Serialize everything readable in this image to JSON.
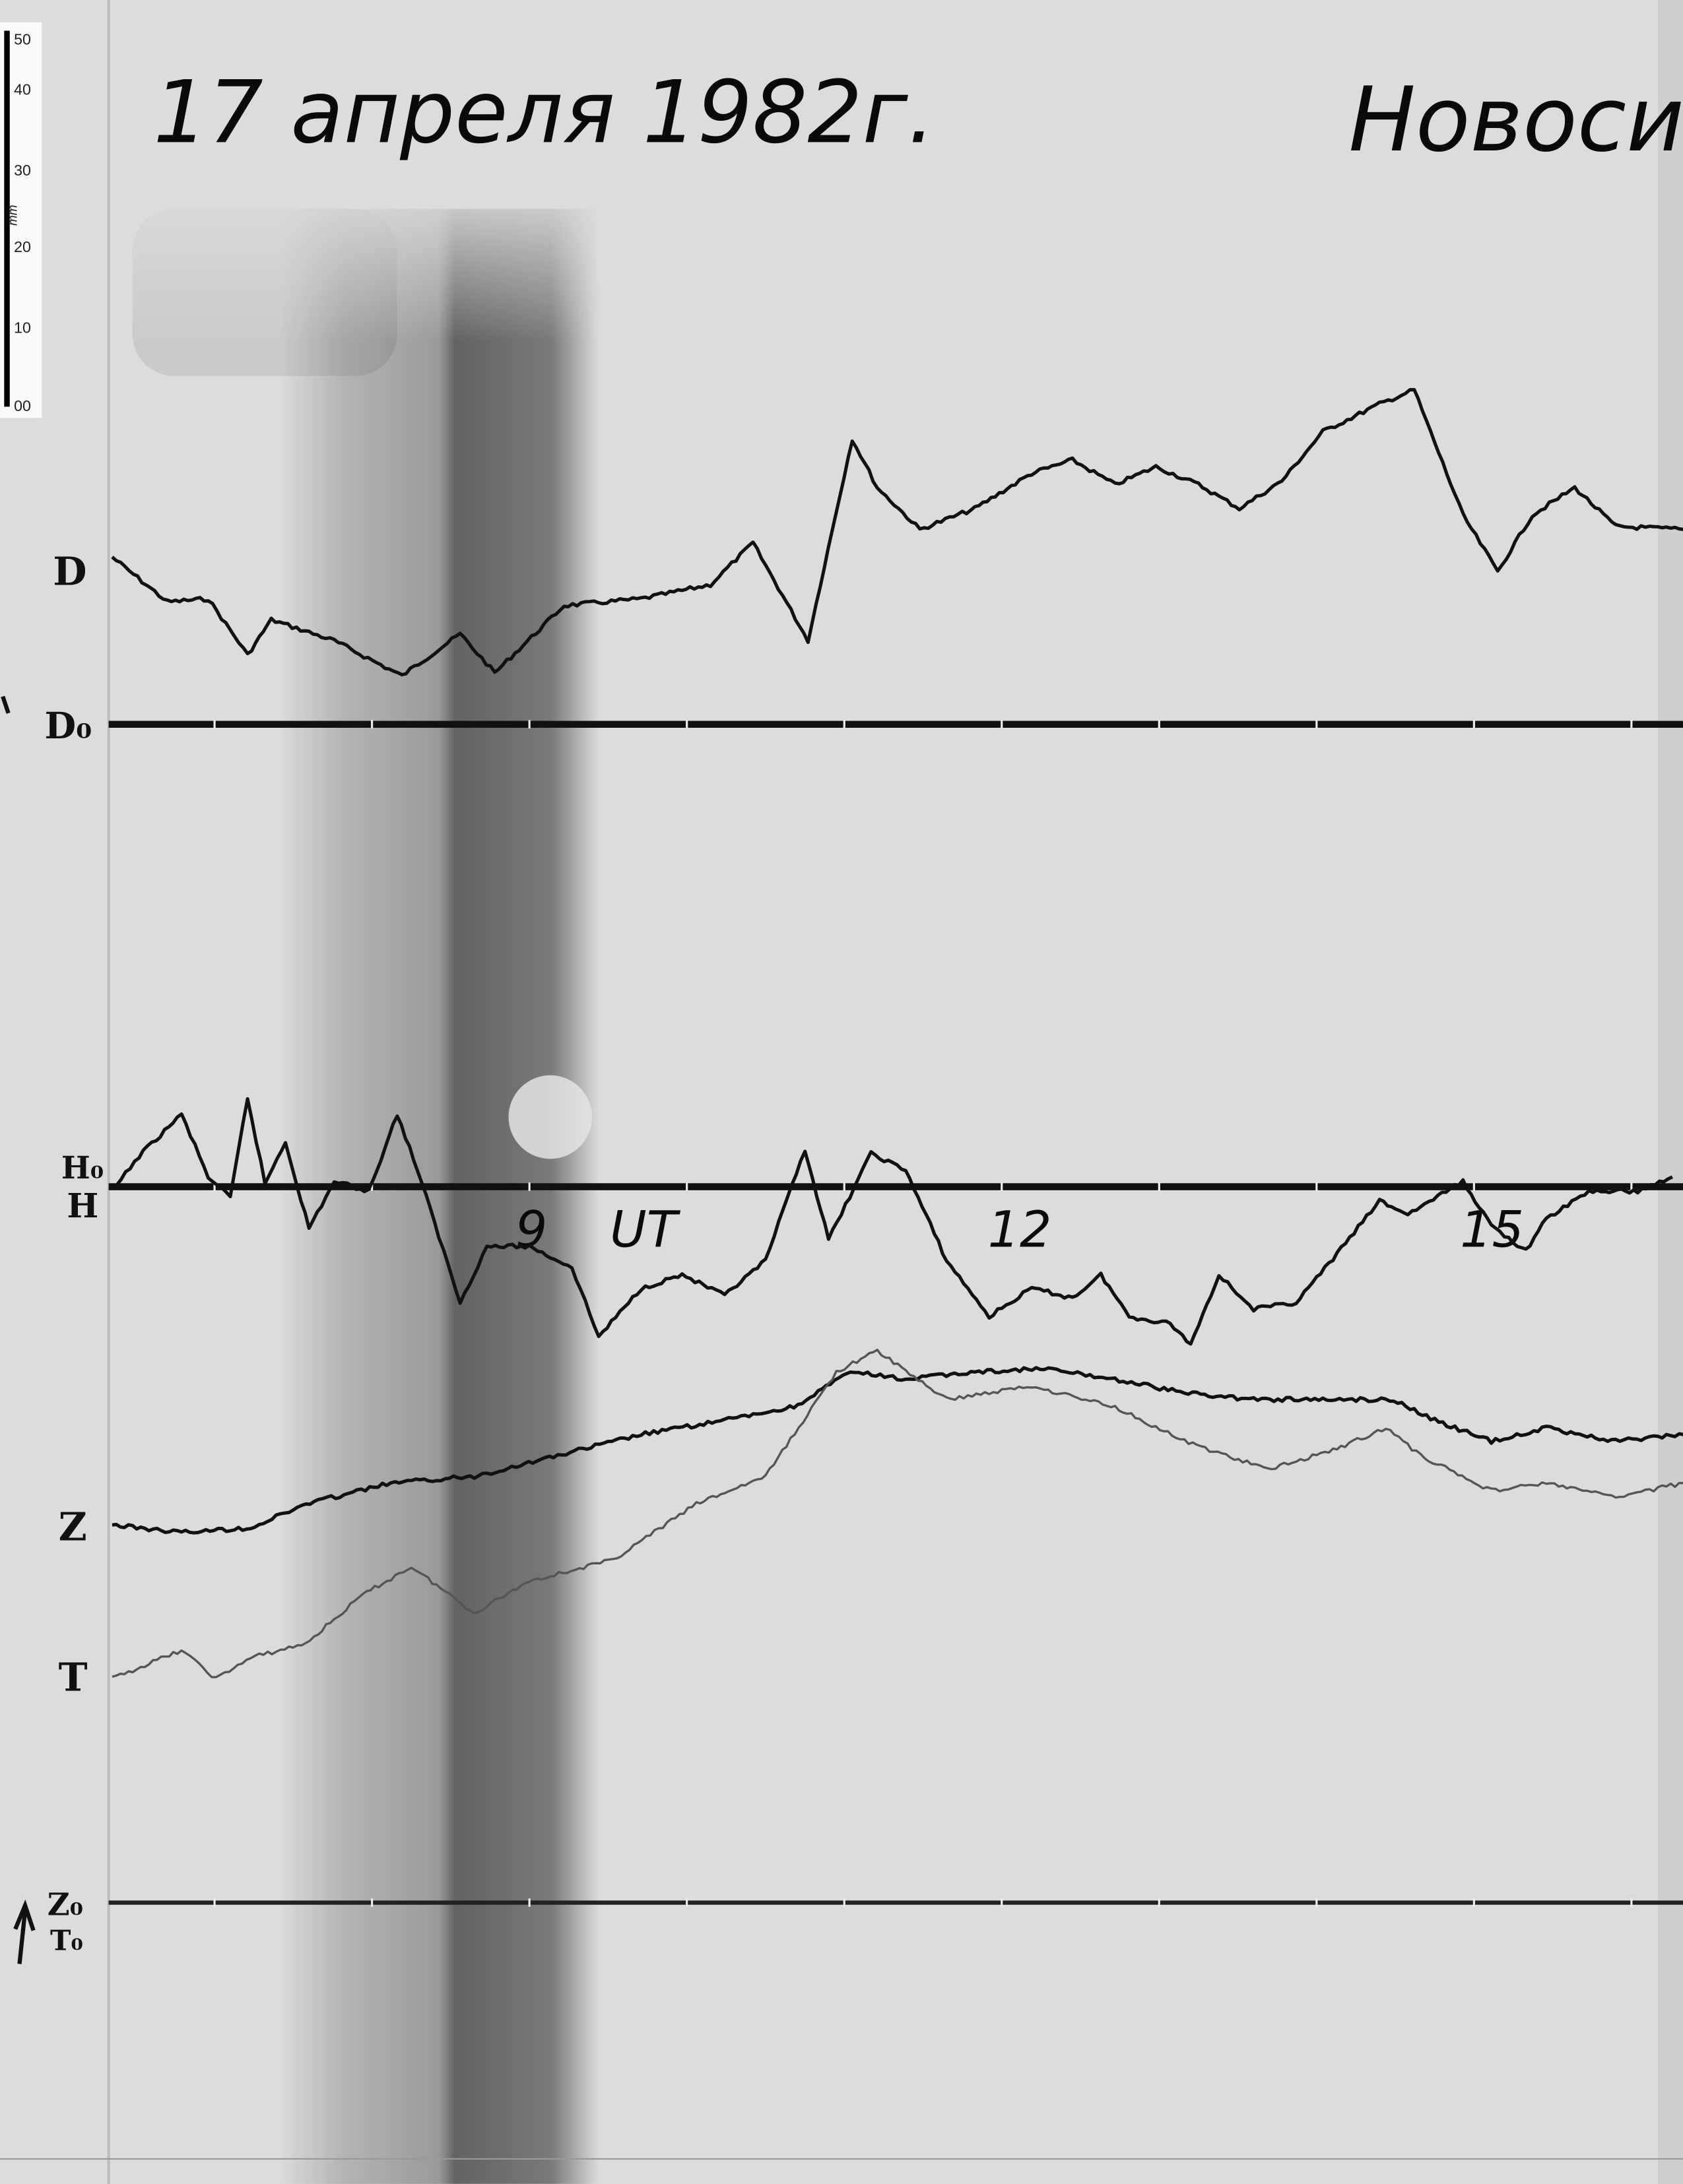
{
  "header": {
    "date": "17 апреля 1982г.",
    "station": "Новосиби"
  },
  "ruler": {
    "unit": "mm",
    "ticks": [
      "50",
      "40",
      "30",
      "20",
      "10",
      "00"
    ]
  },
  "channel_labels": {
    "d": "D",
    "d0": "D₀",
    "h0": "H₀",
    "h": "H",
    "z": "Z",
    "t": "T",
    "z0": "Z₀",
    "t0": "T₀"
  },
  "chart_data": {
    "type": "line",
    "title": "17 апреля 1982г.",
    "xlabel": "UT",
    "x_units": "hours UT",
    "y_units": "mm deflection above the trace's baseline",
    "x_tick_labels": [
      {
        "hour": 9,
        "label": "9"
      },
      {
        "hour": 9.6,
        "label": "UT"
      },
      {
        "hour": 12,
        "label": "12"
      },
      {
        "hour": 15,
        "label": "15"
      }
    ],
    "xlim": [
      6.35,
      16.35
    ],
    "baselines": [
      "D₀",
      "H₀",
      "Z₀ T₀"
    ],
    "series": [
      {
        "name": "D",
        "baseline": "D₀",
        "color": "#111111",
        "points": [
          [
            6.35,
            22.4
          ],
          [
            6.7,
            16.4
          ],
          [
            6.96,
            16.8
          ],
          [
            7.21,
            9.3
          ],
          [
            7.36,
            14.0
          ],
          [
            7.76,
            11.2
          ],
          [
            8.19,
            6.5
          ],
          [
            8.56,
            12.1
          ],
          [
            8.78,
            6.9
          ],
          [
            9.22,
            15.9
          ],
          [
            9.71,
            16.8
          ],
          [
            10.15,
            18.7
          ],
          [
            10.42,
            24.3
          ],
          [
            10.77,
            11.2
          ],
          [
            11.05,
            38.2
          ],
          [
            11.21,
            31.7
          ],
          [
            11.48,
            26.1
          ],
          [
            11.83,
            28.9
          ],
          [
            12.19,
            33.6
          ],
          [
            12.45,
            35.4
          ],
          [
            12.72,
            32.1
          ],
          [
            12.98,
            34.5
          ],
          [
            13.25,
            32.1
          ],
          [
            13.51,
            28.9
          ],
          [
            13.78,
            32.6
          ],
          [
            14.04,
            39.2
          ],
          [
            14.4,
            42.9
          ],
          [
            14.62,
            44.8
          ],
          [
            14.93,
            28.0
          ],
          [
            15.15,
            20.5
          ],
          [
            15.37,
            28.0
          ],
          [
            15.64,
            31.7
          ],
          [
            15.9,
            26.5
          ],
          [
            16.33,
            26.1
          ]
        ]
      },
      {
        "name": "H",
        "baseline": "H₀",
        "color": "#111111",
        "points": [
          [
            6.35,
            -0.6
          ],
          [
            6.52,
            4.1
          ],
          [
            6.79,
            9.7
          ],
          [
            6.96,
            1.3
          ],
          [
            7.1,
            -1.5
          ],
          [
            7.21,
            11.9
          ],
          [
            7.32,
            0.4
          ],
          [
            7.45,
            6.0
          ],
          [
            7.6,
            -5.6
          ],
          [
            7.76,
            0.7
          ],
          [
            7.98,
            -0.6
          ],
          [
            8.16,
            9.7
          ],
          [
            8.29,
            2.2
          ],
          [
            8.56,
            -15.5
          ],
          [
            8.73,
            -8.0
          ],
          [
            9.0,
            -8.0
          ],
          [
            9.27,
            -10.8
          ],
          [
            9.44,
            -20.1
          ],
          [
            9.71,
            -13.6
          ],
          [
            9.97,
            -11.8
          ],
          [
            10.24,
            -14.6
          ],
          [
            10.5,
            -9.9
          ],
          [
            10.75,
            5.0
          ],
          [
            10.9,
            -7.1
          ],
          [
            11.17,
            4.5
          ],
          [
            11.39,
            2.2
          ],
          [
            11.65,
            -9.9
          ],
          [
            11.92,
            -17.4
          ],
          [
            12.19,
            -13.6
          ],
          [
            12.45,
            -14.9
          ],
          [
            12.63,
            -11.8
          ],
          [
            12.81,
            -17.4
          ],
          [
            13.07,
            -18.3
          ],
          [
            13.2,
            -21.1
          ],
          [
            13.38,
            -11.8
          ],
          [
            13.6,
            -16.4
          ],
          [
            13.87,
            -15.5
          ],
          [
            14.13,
            -9.0
          ],
          [
            14.4,
            -1.9
          ],
          [
            14.58,
            -3.7
          ],
          [
            14.93,
            0.7
          ],
          [
            15.11,
            -5.2
          ],
          [
            15.33,
            -8.6
          ],
          [
            15.46,
            -4.3
          ],
          [
            15.73,
            -0.6
          ],
          [
            16.04,
            -0.6
          ],
          [
            16.26,
            1.3
          ]
        ]
      },
      {
        "name": "Z",
        "baseline": "Z₀",
        "color": "#111111",
        "points": [
          [
            6.35,
            50.6
          ],
          [
            6.79,
            49.6
          ],
          [
            7.23,
            50.2
          ],
          [
            7.58,
            53.4
          ],
          [
            8.12,
            56.2
          ],
          [
            8.65,
            57.1
          ],
          [
            9.18,
            59.9
          ],
          [
            9.71,
            62.7
          ],
          [
            10.24,
            64.6
          ],
          [
            10.68,
            66.4
          ],
          [
            11.04,
            71.1
          ],
          [
            11.39,
            70.1
          ],
          [
            11.83,
            71.1
          ],
          [
            12.27,
            71.5
          ],
          [
            12.72,
            70.1
          ],
          [
            13.16,
            68.3
          ],
          [
            13.6,
            67.4
          ],
          [
            14.04,
            67.4
          ],
          [
            14.49,
            67.4
          ],
          [
            14.75,
            64.6
          ],
          [
            15.11,
            61.8
          ],
          [
            15.46,
            63.6
          ],
          [
            15.9,
            61.8
          ],
          [
            16.33,
            62.7
          ]
        ]
      },
      {
        "name": "T",
        "baseline": "T₀",
        "color": "#555555",
        "points": [
          [
            6.35,
            30.0
          ],
          [
            6.79,
            33.8
          ],
          [
            7.01,
            30.0
          ],
          [
            7.23,
            32.8
          ],
          [
            7.58,
            34.7
          ],
          [
            7.94,
            41.2
          ],
          [
            8.25,
            45.0
          ],
          [
            8.65,
            38.8
          ],
          [
            9.0,
            43.1
          ],
          [
            9.53,
            45.9
          ],
          [
            10.06,
            53.4
          ],
          [
            10.5,
            57.1
          ],
          [
            10.95,
            71.1
          ],
          [
            11.21,
            73.9
          ],
          [
            11.65,
            67.4
          ],
          [
            12.19,
            69.2
          ],
          [
            12.72,
            66.4
          ],
          [
            13.16,
            61.8
          ],
          [
            13.69,
            58.0
          ],
          [
            14.13,
            60.8
          ],
          [
            14.44,
            63.6
          ],
          [
            14.66,
            59.9
          ],
          [
            15.11,
            55.2
          ],
          [
            15.46,
            56.2
          ],
          [
            15.9,
            54.3
          ],
          [
            16.33,
            56.2
          ]
        ]
      }
    ]
  }
}
